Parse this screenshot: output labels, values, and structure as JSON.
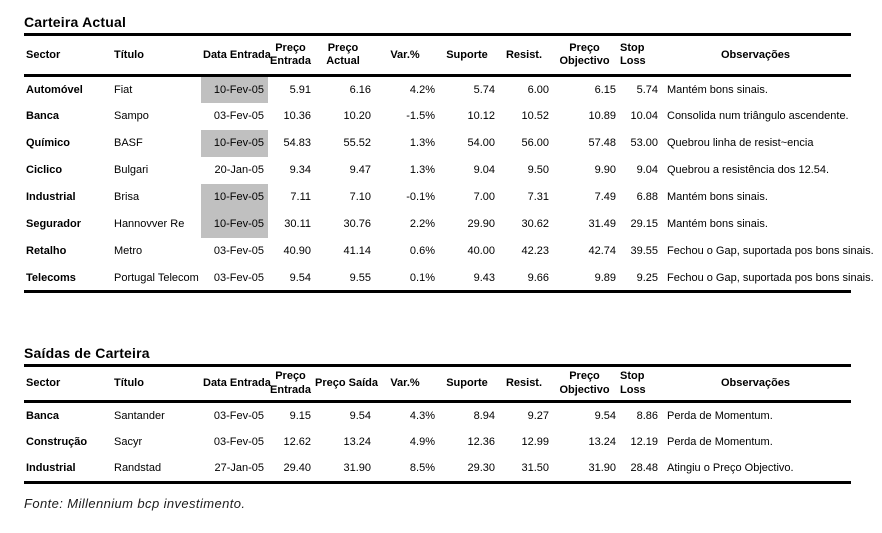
{
  "carteira_actual": {
    "title": "Carteira Actual",
    "columns": [
      "Sector",
      "Título",
      "Data Entrada",
      "Preço\nEntrada",
      "Preço\nActual",
      "Var.%",
      "Suporte",
      "Resist.",
      "Preço\nObjectivo",
      "Stop\nLoss",
      "Observações"
    ],
    "rows": [
      {
        "sector": "Automóvel",
        "titulo": "Fiat",
        "data_entrada": "10-Fev-05",
        "highlighted": true,
        "preco_entrada": "5.91",
        "preco_actual": "6.16",
        "var": "4.2%",
        "suporte": "5.74",
        "resist": "6.00",
        "preco_objectivo": "6.15",
        "stop_loss": "5.74",
        "observacoes": "Mantém bons sinais."
      },
      {
        "sector": "Banca",
        "titulo": "Sampo",
        "data_entrada": "03-Fev-05",
        "highlighted": false,
        "preco_entrada": "10.36",
        "preco_actual": "10.20",
        "var": "-1.5%",
        "suporte": "10.12",
        "resist": "10.52",
        "preco_objectivo": "10.89",
        "stop_loss": "10.04",
        "observacoes": "Consolida num triângulo ascendente."
      },
      {
        "sector": "Químico",
        "titulo": "BASF",
        "data_entrada": "10-Fev-05",
        "highlighted": true,
        "preco_entrada": "54.83",
        "preco_actual": "55.52",
        "var": "1.3%",
        "suporte": "54.00",
        "resist": "56.00",
        "preco_objectivo": "57.48",
        "stop_loss": "53.00",
        "observacoes": "Quebrou linha de resist~encia"
      },
      {
        "sector": "Ciclico",
        "titulo": "Bulgari",
        "data_entrada": "20-Jan-05",
        "highlighted": false,
        "preco_entrada": "9.34",
        "preco_actual": "9.47",
        "var": "1.3%",
        "suporte": "9.04",
        "resist": "9.50",
        "preco_objectivo": "9.90",
        "stop_loss": "9.04",
        "observacoes": "Quebrou a resistência dos 12.54."
      },
      {
        "sector": "Industrial",
        "titulo": "Brisa",
        "data_entrada": "10-Fev-05",
        "highlighted": true,
        "preco_entrada": "7.11",
        "preco_actual": "7.10",
        "var": "-0.1%",
        "suporte": "7.00",
        "resist": "7.31",
        "preco_objectivo": "7.49",
        "stop_loss": "6.88",
        "observacoes": "Mantém bons sinais."
      },
      {
        "sector": "Segurador",
        "titulo": "Hannovver Re",
        "data_entrada": "10-Fev-05",
        "highlighted": true,
        "preco_entrada": "30.11",
        "preco_actual": "30.76",
        "var": "2.2%",
        "suporte": "29.90",
        "resist": "30.62",
        "preco_objectivo": "31.49",
        "stop_loss": "29.15",
        "observacoes": "Mantém bons sinais."
      },
      {
        "sector": "Retalho",
        "titulo": "Metro",
        "data_entrada": "03-Fev-05",
        "highlighted": false,
        "preco_entrada": "40.90",
        "preco_actual": "41.14",
        "var": "0.6%",
        "suporte": "40.00",
        "resist": "42.23",
        "preco_objectivo": "42.74",
        "stop_loss": "39.55",
        "observacoes": "Fechou o Gap, suportada pos bons sinais."
      },
      {
        "sector": "Telecoms",
        "titulo": "Portugal Telecom",
        "data_entrada": "03-Fev-05",
        "highlighted": false,
        "preco_entrada": "9.54",
        "preco_actual": "9.55",
        "var": "0.1%",
        "suporte": "9.43",
        "resist": "9.66",
        "preco_objectivo": "9.89",
        "stop_loss": "9.25",
        "observacoes": "Fechou o Gap, suportada pos bons sinais."
      }
    ]
  },
  "saidas_carteira": {
    "title": "Saídas de Carteira",
    "columns": [
      "Sector",
      "Título",
      "Data Entrada",
      "Preço\nEntrada",
      "Preço Saída",
      "Var.%",
      "Suporte",
      "Resist.",
      "Preço\nObjectivo",
      "Stop\nLoss",
      "Observações"
    ],
    "rows": [
      {
        "sector": "Banca",
        "titulo": "Santander",
        "data_entrada": "03-Fev-05",
        "highlighted": false,
        "preco_entrada": "9.15",
        "preco_saida": "9.54",
        "var": "4.3%",
        "suporte": "8.94",
        "resist": "9.27",
        "preco_objectivo": "9.54",
        "stop_loss": "8.86",
        "observacoes": "Perda de Momentum."
      },
      {
        "sector": "Construção",
        "titulo": "Sacyr",
        "data_entrada": "03-Fev-05",
        "highlighted": false,
        "preco_entrada": "12.62",
        "preco_saida": "13.24",
        "var": "4.9%",
        "suporte": "12.36",
        "resist": "12.99",
        "preco_objectivo": "13.24",
        "stop_loss": "12.19",
        "observacoes": "Perda de Momentum."
      },
      {
        "sector": "Industrial",
        "titulo": "Randstad",
        "data_entrada": "27-Jan-05",
        "highlighted": false,
        "preco_entrada": "29.40",
        "preco_saida": "31.90",
        "var": "8.5%",
        "suporte": "29.30",
        "resist": "31.50",
        "preco_objectivo": "31.90",
        "stop_loss": "28.48",
        "observacoes": "Atingiu o Preço Objectivo."
      }
    ]
  },
  "footer": {
    "source": "Fonte: Millennium bcp investimento."
  },
  "colors": {
    "highlight": "#c0c0c0",
    "rule": "#000000",
    "background": "#ffffff"
  }
}
